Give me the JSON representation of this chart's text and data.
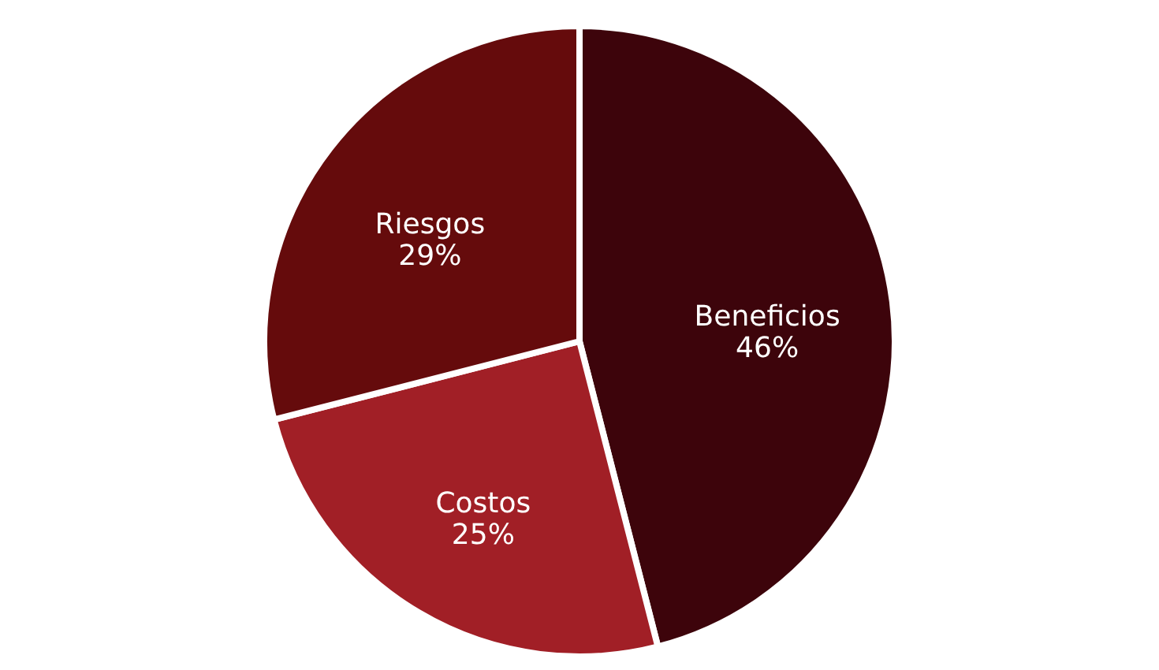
{
  "chart_data": {
    "type": "pie",
    "categories": [
      "Beneficios",
      "Costos",
      "Riesgos"
    ],
    "values": [
      46,
      25,
      29
    ],
    "value_labels": [
      "46%",
      "25%",
      "29%"
    ],
    "colors": [
      "#3d040b",
      "#a11f26",
      "#650b0c"
    ]
  }
}
